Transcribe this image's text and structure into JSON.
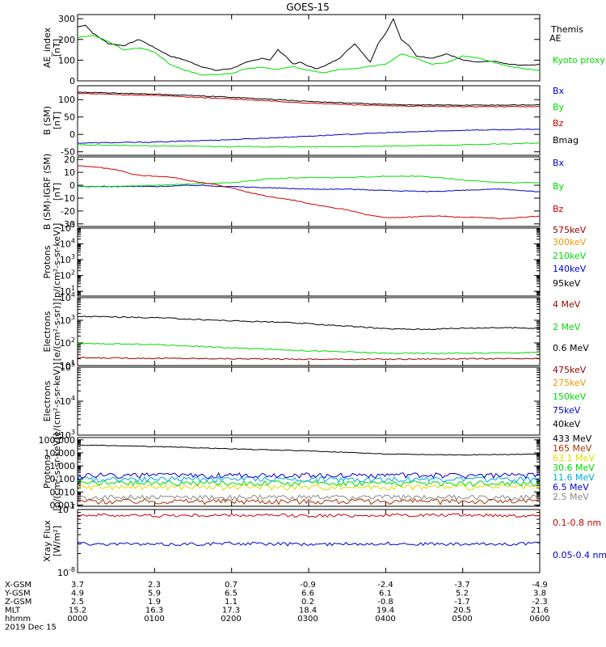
{
  "title": "GOES-15",
  "colors": {
    "black": "#000000",
    "red": "#cc0000",
    "green": "#00dd00",
    "blue": "#0000cc",
    "orange": "#ee9900",
    "yellow": "#dddd00",
    "cyan": "#00aadd",
    "darkred": "#990000",
    "brown": "#aa3300",
    "gray": "#888888"
  },
  "chart_data": [
    {
      "type": "line",
      "yscale": "linear",
      "ylabel": [
        "AE_index",
        "[nT]"
      ],
      "ylim": [
        0,
        320
      ],
      "yticks": [
        0,
        100,
        200,
        300
      ],
      "series": [
        {
          "name": "Themis AE",
          "color": "black",
          "x": [
            0,
            10,
            20,
            40,
            60,
            80,
            100,
            120,
            140,
            160,
            180,
            200,
            220,
            240,
            250,
            260,
            270,
            280,
            290,
            300,
            310,
            320,
            340,
            360,
            380,
            390,
            400,
            410,
            420,
            430,
            440,
            460,
            480,
            500,
            520,
            540,
            560,
            580,
            600
          ],
          "values": [
            260,
            270,
            230,
            180,
            170,
            200,
            160,
            120,
            100,
            70,
            50,
            60,
            90,
            110,
            100,
            150,
            120,
            80,
            90,
            70,
            60,
            70,
            110,
            180,
            90,
            180,
            230,
            300,
            200,
            170,
            120,
            110,
            130,
            100,
            90,
            95,
            80,
            75,
            80
          ]
        },
        {
          "name": "Kyoto proxy AE",
          "color": "green",
          "x": [
            0,
            20,
            40,
            60,
            80,
            100,
            120,
            140,
            160,
            180,
            200,
            220,
            240,
            260,
            280,
            300,
            320,
            340,
            360,
            380,
            400,
            420,
            440,
            460,
            480,
            500,
            520,
            540,
            560,
            580,
            600
          ],
          "values": [
            210,
            220,
            190,
            150,
            160,
            140,
            80,
            50,
            30,
            30,
            35,
            60,
            65,
            55,
            70,
            50,
            40,
            55,
            60,
            70,
            80,
            130,
            110,
            80,
            90,
            120,
            110,
            90,
            70,
            60,
            50
          ]
        }
      ]
    },
    {
      "type": "line",
      "yscale": "linear",
      "ylabel": [
        "B (SM)",
        "[nT]"
      ],
      "ylim": [
        -60,
        140
      ],
      "yticks": [
        -50,
        0,
        50,
        100
      ],
      "series": [
        {
          "name": "Bx",
          "color": "blue",
          "x": [
            0,
            100,
            200,
            300,
            400,
            500,
            600
          ],
          "values": [
            -25,
            -22,
            -15,
            -5,
            5,
            12,
            15
          ]
        },
        {
          "name": "By",
          "color": "green",
          "x": [
            0,
            100,
            200,
            300,
            400,
            500,
            600
          ],
          "values": [
            -30,
            -33,
            -35,
            -36,
            -34,
            -30,
            -25
          ]
        },
        {
          "name": "Bz",
          "color": "red",
          "x": [
            0,
            100,
            200,
            300,
            400,
            500,
            600
          ],
          "values": [
            118,
            112,
            102,
            90,
            82,
            80,
            80
          ]
        },
        {
          "name": "Bmag",
          "color": "black",
          "x": [
            0,
            100,
            200,
            300,
            400,
            500,
            600
          ],
          "values": [
            121,
            116,
            107,
            95,
            86,
            84,
            85
          ]
        }
      ]
    },
    {
      "type": "line",
      "yscale": "linear",
      "ylabel": [
        "B (SM)-IGRF (SM)",
        "[nT]"
      ],
      "ylim": [
        -32,
        22
      ],
      "yticks": [
        -30,
        -20,
        -10,
        0,
        10,
        20
      ],
      "series": [
        {
          "name": "Bx",
          "color": "blue",
          "x": [
            0,
            50,
            100,
            150,
            200,
            250,
            300,
            350,
            400,
            450,
            500,
            550,
            600
          ],
          "values": [
            -1,
            -1,
            -1,
            0,
            -1,
            -2,
            -3,
            -3,
            -4,
            -5,
            -4,
            -3,
            -5
          ]
        },
        {
          "name": "By",
          "color": "green",
          "x": [
            0,
            50,
            100,
            150,
            200,
            250,
            300,
            350,
            400,
            450,
            500,
            550,
            600
          ],
          "values": [
            -1,
            -1,
            0,
            1,
            2,
            5,
            6,
            6,
            7,
            7,
            4,
            2,
            2
          ]
        },
        {
          "name": "Bz",
          "color": "red",
          "x": [
            0,
            25,
            50,
            75,
            100,
            125,
            150,
            175,
            200,
            225,
            250,
            275,
            300,
            325,
            350,
            375,
            400,
            425,
            450,
            475,
            500,
            525,
            550,
            575,
            600
          ],
          "values": [
            15,
            14,
            12,
            8,
            7,
            6,
            3,
            1,
            -2,
            -6,
            -9,
            -11,
            -14,
            -17,
            -19,
            -23,
            -25,
            -25,
            -24,
            -24,
            -25,
            -25,
            -26,
            -25,
            -24
          ]
        }
      ]
    },
    {
      "type": "line",
      "yscale": "log",
      "ylabel": [
        "Protons",
        "[p/(cm²-s-sr-keV)]"
      ],
      "ylim": [
        5,
        100000
      ],
      "yticks": [
        10,
        100,
        1000,
        10000,
        100000
      ],
      "series": [
        {
          "name": "575keV",
          "color": "darkred",
          "x": [],
          "values": []
        },
        {
          "name": "300keV",
          "color": "orange",
          "x": [],
          "values": []
        },
        {
          "name": "210keV",
          "color": "green",
          "x": [],
          "values": []
        },
        {
          "name": "140keV",
          "color": "blue",
          "x": [],
          "values": []
        },
        {
          "name": "95keV",
          "color": "black",
          "x": [],
          "values": []
        }
      ]
    },
    {
      "type": "line",
      "yscale": "log",
      "ylabel": [
        "Electrons",
        "[e/(cm²-s-sr)]"
      ],
      "ylim": [
        10,
        10000
      ],
      "yticks": [
        10,
        100,
        1000,
        10000
      ],
      "series": [
        {
          "name": "4 MeV",
          "color": "darkred",
          "x": [
            0,
            100,
            200,
            300,
            400,
            500,
            600
          ],
          "values": [
            22,
            21,
            20,
            19,
            19,
            20,
            20
          ]
        },
        {
          "name": "2 MeV",
          "color": "green",
          "x": [
            0,
            100,
            200,
            300,
            400,
            500,
            600
          ],
          "values": [
            95,
            85,
            60,
            45,
            35,
            35,
            38
          ]
        },
        {
          "name": "0.6 MeV",
          "color": "black",
          "x": [
            0,
            50,
            100,
            150,
            200,
            250,
            300,
            350,
            400,
            450,
            500,
            550,
            600
          ],
          "values": [
            1500,
            1400,
            1300,
            1100,
            950,
            850,
            700,
            550,
            420,
            400,
            450,
            470,
            450
          ]
        }
      ]
    },
    {
      "type": "line",
      "yscale": "log",
      "ylabel": [
        "Electrons",
        "[e/(cm²-s-sr-keV)]"
      ],
      "ylim": [
        1000,
        100000
      ],
      "yticks": [
        1000,
        10000,
        100000
      ],
      "series": [
        {
          "name": "475keV",
          "color": "darkred",
          "x": [],
          "values": []
        },
        {
          "name": "275keV",
          "color": "orange",
          "x": [],
          "values": []
        },
        {
          "name": "150keV",
          "color": "green",
          "x": [],
          "values": []
        },
        {
          "name": "75keV",
          "color": "blue",
          "x": [],
          "values": []
        },
        {
          "name": "40keV",
          "color": "black",
          "x": [],
          "values": []
        }
      ]
    },
    {
      "type": "line",
      "yscale": "log",
      "ylabel": [
        "Protons",
        "[p/(cm²-s-sr-keV)]"
      ],
      "ylim": [
        0.0008,
        150
      ],
      "yticks": [
        0.001,
        0.01,
        0.1,
        1,
        10,
        100
      ],
      "yticklabels": [
        "0.001",
        "0.010",
        "0.100",
        "1.000",
        "10.000",
        "100.000"
      ],
      "series": [
        {
          "name": "433 MeV",
          "color": "black",
          "x": [
            0,
            100,
            200,
            300,
            400,
            500,
            600
          ],
          "values": [
            40,
            30,
            20,
            14,
            8,
            7,
            8
          ]
        },
        {
          "name": "165 MeV",
          "color": "brown",
          "x": [
            0,
            600
          ],
          "values": [
            0.002,
            0.002
          ]
        },
        {
          "name": "63.1 MeV",
          "color": "yellow",
          "x": [
            0,
            600
          ],
          "values": [
            0.025,
            0.025
          ]
        },
        {
          "name": "30.6 MeV",
          "color": "green",
          "x": [
            0,
            600
          ],
          "values": [
            0.05,
            0.05
          ]
        },
        {
          "name": "11.6 MeV",
          "color": "cyan",
          "x": [
            0,
            600
          ],
          "values": [
            0.1,
            0.1
          ]
        },
        {
          "name": "6.5 MeV",
          "color": "blue",
          "x": [
            0,
            600
          ],
          "values": [
            0.2,
            0.2
          ]
        },
        {
          "name": "2.5 MeV",
          "color": "gray",
          "x": [
            0,
            600
          ],
          "values": [
            0.004,
            0.004
          ]
        }
      ]
    },
    {
      "type": "line",
      "yscale": "log",
      "ylabel": [
        "Xray Flux",
        "[W/m²]"
      ],
      "ylim": [
        1e-08,
        1e-07
      ],
      "yticks": [
        1e-08,
        1e-07
      ],
      "series": [
        {
          "name": "0.1-0.8 nm",
          "color": "red",
          "x": [
            0,
            100,
            200,
            300,
            400,
            500,
            600
          ],
          "values": [
            8.2e-08,
            8e-08,
            8.1e-08,
            8e-08,
            8.1e-08,
            8.2e-08,
            8e-08
          ]
        },
        {
          "name": "0.05-0.4 nm",
          "color": "blue",
          "x": [
            0,
            100,
            200,
            300,
            400,
            500,
            600
          ],
          "values": [
            2.9e-08,
            2.8e-08,
            2.9e-08,
            2.8e-08,
            2.9e-08,
            2.8e-08,
            2.9e-08
          ]
        }
      ]
    }
  ],
  "footer": {
    "rows": [
      {
        "label": "X-GSM",
        "values": [
          "3.7",
          "2.3",
          "0.7",
          "-0.9",
          "-2.4",
          "-3.7",
          "-4.9"
        ]
      },
      {
        "label": "Y-GSM",
        "values": [
          "4.9",
          "5.9",
          "6.5",
          "6.6",
          "6.1",
          "5.2",
          "3.8"
        ]
      },
      {
        "label": "Z-GSM",
        "values": [
          "2.5",
          "1.9",
          "1.1",
          "0.2",
          "-0.8",
          "-1.7",
          "-2.3"
        ]
      },
      {
        "label": "MLT",
        "values": [
          "15.2",
          "16.3",
          "17.3",
          "18.4",
          "19.4",
          "20.5",
          "21.6"
        ]
      },
      {
        "label": "hhmm",
        "values": [
          "0000",
          "0100",
          "0200",
          "0300",
          "0400",
          "0500",
          "0600"
        ]
      }
    ],
    "date": "2019 Dec 15"
  }
}
